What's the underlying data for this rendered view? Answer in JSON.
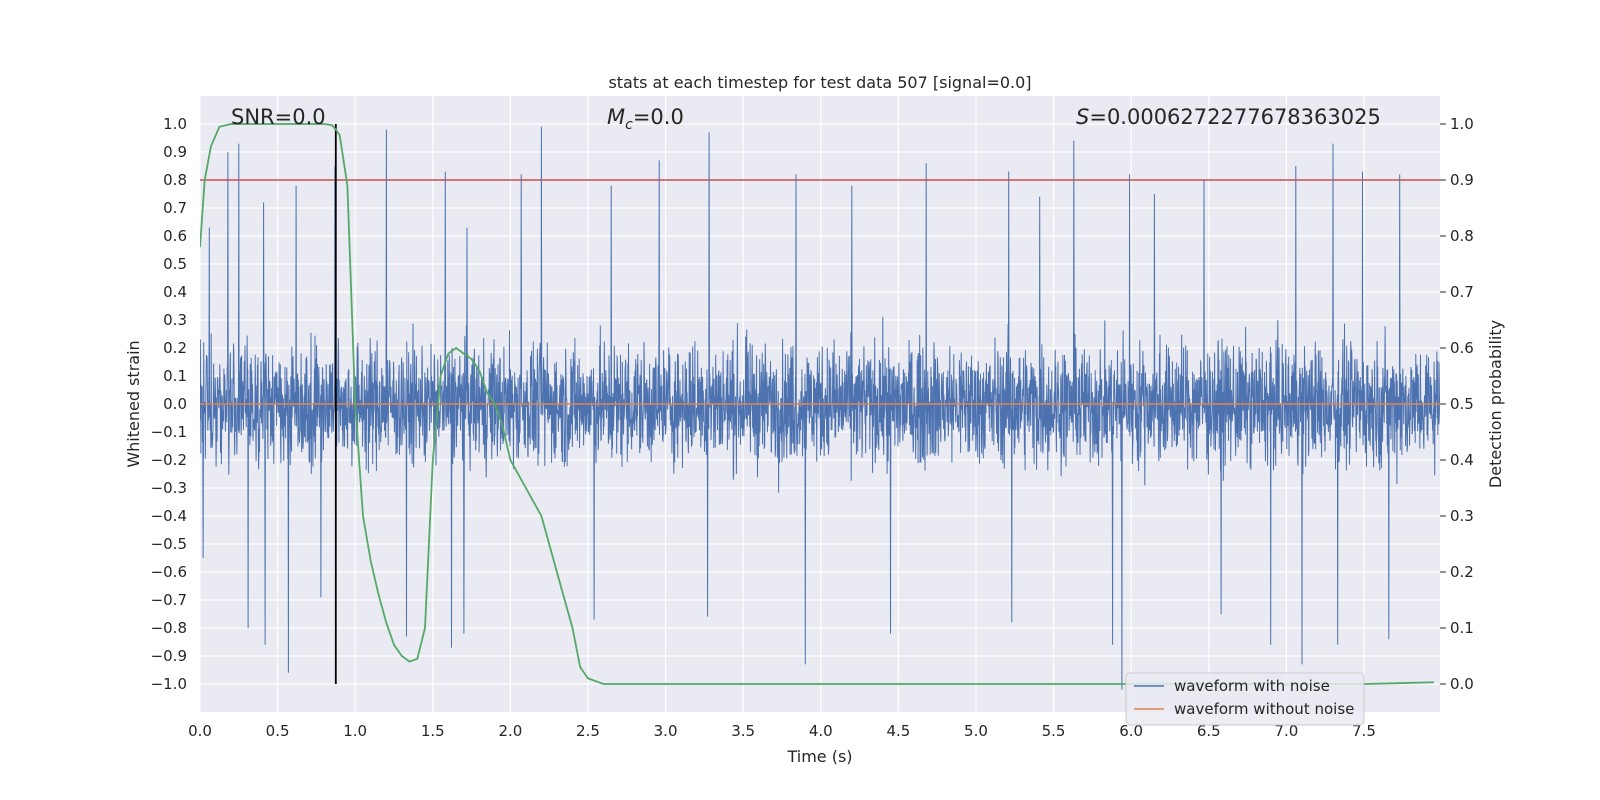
{
  "chart_data": {
    "type": "line",
    "title": "stats at each timestep for test data 507 [signal=0.0]",
    "xlabel": "Time (s)",
    "ylabel": "Whitened strain",
    "y2label": "Detection probability",
    "xlim": [
      0,
      7.99
    ],
    "ylim": [
      -1.1,
      1.1
    ],
    "y2lim": [
      -0.05,
      1.05
    ],
    "x_ticks": [
      "0.0",
      "0.5",
      "1.0",
      "1.5",
      "2.0",
      "2.5",
      "3.0",
      "3.5",
      "4.0",
      "4.5",
      "5.0",
      "5.5",
      "6.0",
      "6.5",
      "7.0",
      "7.5"
    ],
    "y_ticks": [
      "1.0",
      "0.9",
      "0.8",
      "0.7",
      "0.6",
      "0.5",
      "0.4",
      "0.3",
      "0.2",
      "0.1",
      "0.0",
      "−0.1",
      "−0.2",
      "−0.3",
      "−0.4",
      "−0.5",
      "−0.6",
      "−0.7",
      "−0.8",
      "−0.9",
      "−1.0"
    ],
    "y2_ticks": [
      "1.0",
      "0.9",
      "0.8",
      "0.7",
      "0.6",
      "0.5",
      "0.4",
      "0.3",
      "0.2",
      "0.1",
      "0.0"
    ],
    "grid": true,
    "legend_position": "lower right",
    "annotations": {
      "snr": "SNR=0.0",
      "mc_symbol": "M",
      "mc_sub": "c",
      "mc_value": "=0.0",
      "s_symbol": "S",
      "s_value": "=0.0006272277678363025"
    },
    "threshold_line": {
      "axis": "y2",
      "value": 0.9,
      "color": "#c44e52"
    },
    "marker_line": {
      "x": 0.875,
      "color": "#000000"
    },
    "series": [
      {
        "name": "waveform with noise",
        "color": "#4c72b0",
        "axis": "y",
        "description_values": {
          "envelope_typical": 0.4,
          "envelope_peak_max": 0.99,
          "envelope_peak_min": -1.02
        },
        "peaks_top": [
          [
            0.06,
            0.63
          ],
          [
            0.18,
            0.9
          ],
          [
            0.25,
            0.93
          ],
          [
            0.41,
            0.72
          ],
          [
            0.62,
            0.78
          ],
          [
            0.87,
            0.85
          ],
          [
            1.2,
            0.98
          ],
          [
            1.58,
            0.83
          ],
          [
            1.72,
            0.63
          ],
          [
            2.07,
            0.82
          ],
          [
            2.2,
            0.99
          ],
          [
            2.65,
            0.78
          ],
          [
            2.96,
            0.87
          ],
          [
            3.28,
            0.97
          ],
          [
            3.84,
            0.82
          ],
          [
            4.2,
            0.78
          ],
          [
            4.68,
            0.86
          ],
          [
            5.21,
            0.83
          ],
          [
            5.41,
            0.74
          ],
          [
            5.63,
            0.94
          ],
          [
            5.99,
            0.82
          ],
          [
            6.15,
            0.75
          ],
          [
            6.47,
            0.8
          ],
          [
            7.06,
            0.85
          ],
          [
            7.3,
            0.93
          ],
          [
            7.49,
            0.83
          ],
          [
            7.73,
            0.82
          ]
        ],
        "peaks_bottom": [
          [
            0.02,
            -0.55
          ],
          [
            0.31,
            -0.8
          ],
          [
            0.42,
            -0.86
          ],
          [
            0.57,
            -0.96
          ],
          [
            0.78,
            -0.69
          ],
          [
            1.33,
            -0.83
          ],
          [
            1.62,
            -0.87
          ],
          [
            1.7,
            -0.82
          ],
          [
            2.54,
            -0.77
          ],
          [
            3.27,
            -0.76
          ],
          [
            3.9,
            -0.93
          ],
          [
            4.45,
            -0.82
          ],
          [
            5.23,
            -0.78
          ],
          [
            5.88,
            -0.86
          ],
          [
            5.94,
            -1.02
          ],
          [
            6.58,
            -0.75
          ],
          [
            6.9,
            -0.86
          ],
          [
            7.1,
            -0.93
          ],
          [
            7.33,
            -0.86
          ],
          [
            7.66,
            -0.84
          ]
        ]
      },
      {
        "name": "waveform without noise",
        "color": "#dd8452",
        "axis": "y",
        "x": [
          0,
          7.99
        ],
        "y": [
          0,
          0
        ]
      },
      {
        "name": "detection probability",
        "color": "#55a868",
        "axis": "y2",
        "x": [
          0.0,
          0.03,
          0.07,
          0.125,
          0.2,
          0.3,
          0.4,
          0.5,
          0.6,
          0.7,
          0.8,
          0.85,
          0.875,
          0.9,
          0.95,
          1.0,
          1.05,
          1.1,
          1.15,
          1.2,
          1.25,
          1.3,
          1.35,
          1.4,
          1.45,
          1.5,
          1.55,
          1.6,
          1.65,
          1.7,
          1.75,
          1.8,
          1.85,
          1.9,
          1.95,
          2.0,
          2.1,
          2.2,
          2.3,
          2.4,
          2.45,
          2.5,
          2.6,
          3.0,
          4.0,
          5.0,
          6.0,
          7.0,
          7.5,
          7.95
        ],
        "y": [
          0.78,
          0.9,
          0.96,
          0.995,
          1.0,
          1.0,
          1.0,
          1.0,
          1.0,
          1.0,
          1.0,
          0.998,
          0.99,
          0.98,
          0.89,
          0.5,
          0.3,
          0.22,
          0.16,
          0.11,
          0.07,
          0.05,
          0.04,
          0.045,
          0.1,
          0.4,
          0.55,
          0.59,
          0.6,
          0.59,
          0.58,
          0.56,
          0.52,
          0.5,
          0.46,
          0.4,
          0.35,
          0.3,
          0.2,
          0.1,
          0.03,
          0.01,
          0.0,
          0.0,
          0.0,
          0.0,
          0.0,
          0.0,
          0.0,
          0.003
        ]
      }
    ]
  }
}
